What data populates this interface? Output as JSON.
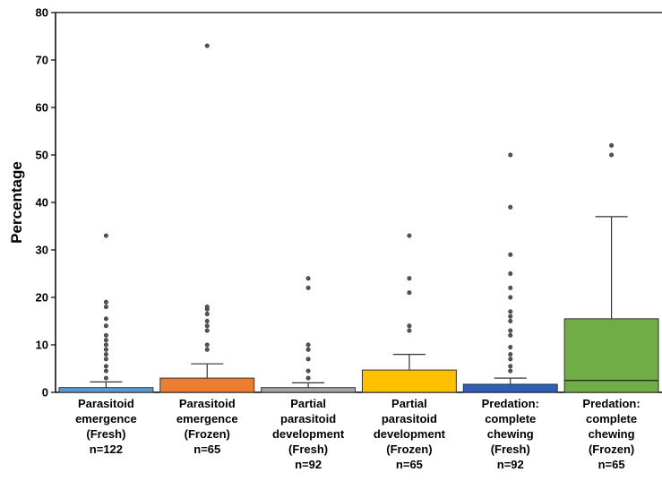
{
  "chart_data": {
    "type": "box",
    "title": "",
    "xlabel": "",
    "ylabel": "Percentage",
    "ylim": [
      0,
      80
    ],
    "yticks": [
      0,
      10,
      20,
      30,
      40,
      50,
      60,
      70,
      80
    ],
    "grid": false,
    "legend": "none",
    "series": [
      {
        "label_lines": [
          "Parasitoid",
          "emergence",
          "(Fresh)",
          "n=122"
        ],
        "color": "#5b9bd5",
        "q1": 0,
        "median": 0,
        "q3": 1,
        "whisker_low": 0,
        "whisker_high": 2.2,
        "outliers": [
          3,
          4.5,
          5.5,
          7,
          8,
          9,
          10,
          11,
          12,
          14,
          15.5,
          18,
          19,
          33
        ]
      },
      {
        "label_lines": [
          "Parasitoid",
          "emergence",
          "(Frozen)",
          "n=65"
        ],
        "color": "#ed7d31",
        "q1": 0,
        "median": 0,
        "q3": 3,
        "whisker_low": 0,
        "whisker_high": 6,
        "outliers": [
          9,
          10,
          13,
          14,
          15,
          16.5,
          17.5,
          18,
          73
        ]
      },
      {
        "label_lines": [
          "Partial",
          "parasitoid",
          "development",
          "(Fresh)",
          "n=92"
        ],
        "color": "#a6a6a6",
        "q1": 0,
        "median": 0,
        "q3": 1,
        "whisker_low": 0,
        "whisker_high": 2,
        "outliers": [
          3,
          4.5,
          7,
          9,
          10,
          22,
          24
        ]
      },
      {
        "label_lines": [
          "Partial",
          "parasitoid",
          "development",
          "(Frozen)",
          "n=65"
        ],
        "color": "#ffc000",
        "q1": 0,
        "median": 0,
        "q3": 4.7,
        "whisker_low": 0,
        "whisker_high": 8,
        "outliers": [
          13,
          14,
          21,
          24,
          33
        ]
      },
      {
        "label_lines": [
          "Predation:",
          "complete",
          "chewing",
          "(Fresh)",
          "n=92"
        ],
        "color": "#2e5eb8",
        "q1": 0,
        "median": 0,
        "q3": 1.7,
        "whisker_low": 0,
        "whisker_high": 3,
        "outliers": [
          4.5,
          5.5,
          7,
          8,
          9.5,
          12,
          13,
          15,
          16,
          17,
          20,
          22,
          25,
          29,
          39,
          50
        ]
      },
      {
        "label_lines": [
          "Predation:",
          "complete",
          "chewing",
          "(Frozen)",
          "n=65"
        ],
        "color": "#70ad47",
        "q1": 0,
        "median": 2.5,
        "q3": 15.5,
        "whisker_low": 0,
        "whisker_high": 37,
        "outliers": [
          50,
          52
        ]
      }
    ]
  }
}
